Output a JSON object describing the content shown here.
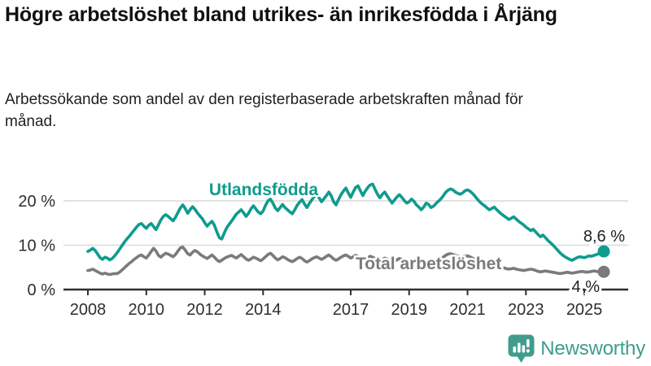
{
  "header": {
    "title": "Högre arbetslöshet bland utrikes- än inrikesfödda i Årjäng",
    "subtitle": "Arbetssökande som andel av den registerbaserade arbetskraften månad för månad."
  },
  "footer": {
    "brand": "Newsworthy"
  },
  "colors": {
    "accent_teal": "#0f9b8e",
    "series_gray": "#7b7b7b",
    "grid": "#d9d9d9",
    "axis": "#2e2e2e",
    "axis_text": "#2e2e2e",
    "end_label_text": "#222222",
    "logo": "#3f9c8e"
  },
  "chart_data": {
    "type": "line",
    "title": "Högre arbetslöshet bland utrikes- än inrikesfödda i Årjäng",
    "xlabel": "",
    "ylabel": "Arbetssökande som andel av arbetskraften (%)",
    "frequency": "monthly",
    "x_start": "2008-01",
    "x_end": "2025-09",
    "ylim": [
      0,
      25
    ],
    "grid": "horizontal",
    "legend_position": "inline-labels",
    "yticks": [
      {
        "value": 0,
        "label": "0 %"
      },
      {
        "value": 10,
        "label": "10 %"
      },
      {
        "value": 20,
        "label": "20 %"
      }
    ],
    "xticks": [
      2008,
      2010,
      2012,
      2014,
      2017,
      2019,
      2021,
      2023,
      2025
    ],
    "series": [
      {
        "name": "Utlandsfödda",
        "color": "#0f9b8e",
        "end_label": "8,6 %",
        "end_value": 8.6,
        "values": [
          8.6,
          8.9,
          9.3,
          8.8,
          8.0,
          7.2,
          6.8,
          7.3,
          7.1,
          6.7,
          7.0,
          7.6,
          8.3,
          9.1,
          9.9,
          10.7,
          11.4,
          12.0,
          12.7,
          13.4,
          14.1,
          14.7,
          14.9,
          14.3,
          13.8,
          14.5,
          14.9,
          14.2,
          13.5,
          14.6,
          15.7,
          16.5,
          16.9,
          16.5,
          16.0,
          15.5,
          16.3,
          17.4,
          18.4,
          19.1,
          18.3,
          17.2,
          18.0,
          18.7,
          18.1,
          17.3,
          16.6,
          16.0,
          15.1,
          14.3,
          14.9,
          15.4,
          14.5,
          13.0,
          11.7,
          11.4,
          12.7,
          13.9,
          14.7,
          15.4,
          16.2,
          17.0,
          17.5,
          18.0,
          17.3,
          16.5,
          17.2,
          18.2,
          18.9,
          18.2,
          17.5,
          17.1,
          17.7,
          19.0,
          20.0,
          20.4,
          19.5,
          18.4,
          17.8,
          18.5,
          19.2,
          18.5,
          18.0,
          17.5,
          17.1,
          18.0,
          19.0,
          19.7,
          20.3,
          19.3,
          18.5,
          19.4,
          20.2,
          21.0,
          21.5,
          20.7,
          19.8,
          20.5,
          21.2,
          22.0,
          21.1,
          19.8,
          19.1,
          20.3,
          21.4,
          22.2,
          22.9,
          21.8,
          20.8,
          22.0,
          23.0,
          23.4,
          22.3,
          21.2,
          22.2,
          23.0,
          23.6,
          23.8,
          22.6,
          21.5,
          20.7,
          21.5,
          22.0,
          21.1,
          20.3,
          19.5,
          20.2,
          20.9,
          21.4,
          20.8,
          20.1,
          19.5,
          19.8,
          20.4,
          19.9,
          19.1,
          18.6,
          18.0,
          18.6,
          19.5,
          19.2,
          18.5,
          18.8,
          19.4,
          19.9,
          20.4,
          21.1,
          21.9,
          22.4,
          22.7,
          22.5,
          22.0,
          21.7,
          21.5,
          21.8,
          22.3,
          22.5,
          22.2,
          21.7,
          21.1,
          20.4,
          19.8,
          19.3,
          18.9,
          18.4,
          18.0,
          18.3,
          18.6,
          18.0,
          17.5,
          17.0,
          16.6,
          16.2,
          15.8,
          16.1,
          16.4,
          15.9,
          15.4,
          15.0,
          14.6,
          14.1,
          13.7,
          13.3,
          13.6,
          13.0,
          12.4,
          11.9,
          12.3,
          11.7,
          11.1,
          10.6,
          10.1,
          9.5,
          8.9,
          8.3,
          7.8,
          7.4,
          7.1,
          6.8,
          6.6,
          6.9,
          7.2,
          7.4,
          7.3,
          7.2,
          7.4,
          7.6,
          7.5,
          7.7,
          7.9,
          8.1,
          8.3,
          8.6
        ]
      },
      {
        "name": "Total arbetslöshet",
        "color": "#7b7b7b",
        "end_label": "4 %",
        "end_value": 4.0,
        "values": [
          4.3,
          4.4,
          4.6,
          4.3,
          4.0,
          3.7,
          3.5,
          3.7,
          3.5,
          3.4,
          3.5,
          3.6,
          3.6,
          3.9,
          4.4,
          4.9,
          5.4,
          5.9,
          6.3,
          6.8,
          7.2,
          7.6,
          7.8,
          7.4,
          7.1,
          7.8,
          8.6,
          9.3,
          8.7,
          7.7,
          7.3,
          7.8,
          8.2,
          8.0,
          7.7,
          7.4,
          7.9,
          8.7,
          9.4,
          9.6,
          8.9,
          8.1,
          7.8,
          8.4,
          8.8,
          8.5,
          8.0,
          7.6,
          7.3,
          7.0,
          7.4,
          7.8,
          7.3,
          6.7,
          6.3,
          6.6,
          7.0,
          7.3,
          7.5,
          7.7,
          7.4,
          7.1,
          7.5,
          7.9,
          7.4,
          6.9,
          6.6,
          6.9,
          7.3,
          7.1,
          6.8,
          6.5,
          6.9,
          7.4,
          7.9,
          8.2,
          7.7,
          7.1,
          6.7,
          7.0,
          7.4,
          7.2,
          6.8,
          6.5,
          6.3,
          6.6,
          7.0,
          7.3,
          7.0,
          6.5,
          6.2,
          6.5,
          6.9,
          7.2,
          7.4,
          7.1,
          6.8,
          7.1,
          7.5,
          7.8,
          7.4,
          6.9,
          6.6,
          6.9,
          7.3,
          7.6,
          7.8,
          7.5,
          7.1,
          7.4,
          7.7,
          7.4,
          7.0,
          6.6,
          6.9,
          7.2,
          7.5,
          7.3,
          7.0,
          6.7,
          6.5,
          6.8,
          7.1,
          6.9,
          6.5,
          6.1,
          6.4,
          6.7,
          7.0,
          6.8,
          6.5,
          6.2,
          6.4,
          6.7,
          6.5,
          6.2,
          5.9,
          5.7,
          6.0,
          6.3,
          6.1,
          5.9,
          6.1,
          6.3,
          6.5,
          6.9,
          7.3,
          7.7,
          8.0,
          8.1,
          7.9,
          7.7,
          7.5,
          7.3,
          7.4,
          7.5,
          7.6,
          7.4,
          7.1,
          6.8,
          6.5,
          6.2,
          6.0,
          5.8,
          5.6,
          5.4,
          5.5,
          5.6,
          5.4,
          5.2,
          5.0,
          4.9,
          4.7,
          4.6,
          4.7,
          4.8,
          4.6,
          4.5,
          4.4,
          4.3,
          4.4,
          4.5,
          4.6,
          4.5,
          4.3,
          4.1,
          4.0,
          4.1,
          4.2,
          4.1,
          4.0,
          3.9,
          3.8,
          3.7,
          3.6,
          3.7,
          3.8,
          3.9,
          3.8,
          3.7,
          3.8,
          3.9,
          4.0,
          4.1,
          4.0,
          3.9,
          4.0,
          4.1,
          4.2,
          4.1,
          4.0,
          4.0,
          4.0
        ]
      }
    ]
  }
}
